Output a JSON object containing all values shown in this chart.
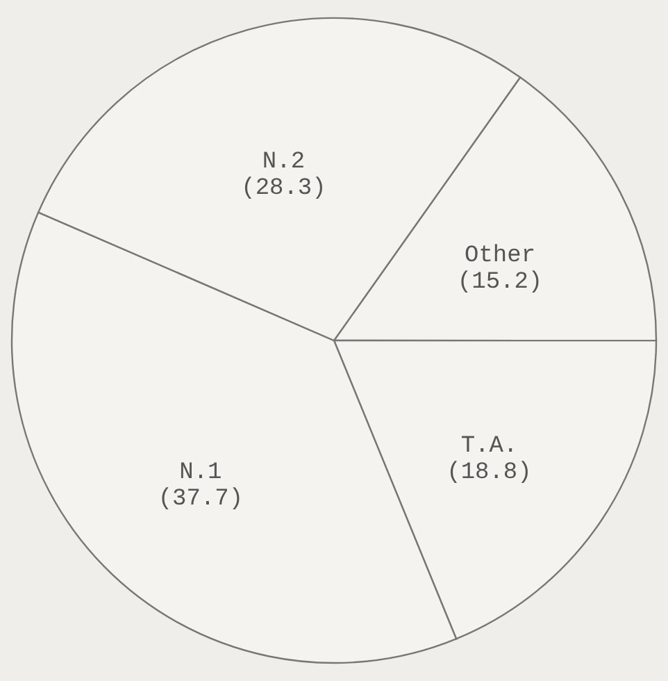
{
  "chart_data": {
    "type": "pie",
    "categories": [
      "Other",
      "T.A.",
      "N.1",
      "N.2"
    ],
    "values": [
      15.2,
      18.8,
      37.7,
      28.3
    ],
    "colors": [
      "#f4f3ef",
      "#f4f3ef",
      "#f4f3ef",
      "#f4f3ef"
    ],
    "value_labels": [
      "(15.2)",
      "(18.8)",
      "(37.7)",
      "(28.3)"
    ]
  }
}
